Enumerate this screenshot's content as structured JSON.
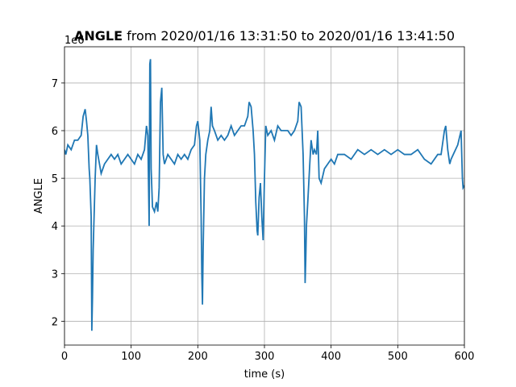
{
  "chart_data": {
    "type": "line",
    "title": [
      "ANGLE",
      "from 2020/01/16 13:31:50 to 2020/01/16 13:41:50"
    ],
    "xlabel": "time (s)",
    "ylabel": "ANGLE",
    "y_offset_label": "1e6",
    "xlim": [
      0,
      600
    ],
    "ylim": [
      1.5,
      7.76
    ],
    "xticks": [
      0,
      100,
      200,
      300,
      400,
      500,
      600
    ],
    "yticks": [
      2,
      3,
      4,
      5,
      6,
      7
    ],
    "grid": true,
    "series": [
      {
        "name": "ANGLE",
        "color": "#1f77b4",
        "x": [
          0,
          2,
          5,
          10,
          15,
          20,
          25,
          28,
          31,
          33,
          35,
          37,
          38,
          40,
          41,
          42,
          43,
          44,
          46,
          48,
          50,
          55,
          60,
          65,
          70,
          75,
          80,
          85,
          90,
          95,
          100,
          105,
          110,
          115,
          120,
          123,
          125,
          127,
          128,
          129,
          130,
          132,
          135,
          138,
          140,
          142,
          144,
          146,
          148,
          150,
          155,
          160,
          165,
          170,
          175,
          180,
          185,
          190,
          195,
          198,
          200,
          203,
          205,
          206,
          207,
          208,
          210,
          212,
          215,
          218,
          220,
          222,
          225,
          230,
          235,
          240,
          245,
          250,
          255,
          260,
          265,
          270,
          275,
          277,
          280,
          283,
          285,
          287,
          289,
          290,
          292,
          294,
          296,
          298,
          300,
          302,
          305,
          310,
          315,
          320,
          325,
          330,
          335,
          340,
          345,
          350,
          352,
          355,
          358,
          360,
          361,
          362,
          363,
          365,
          368,
          370,
          373,
          375,
          378,
          380,
          382,
          385,
          390,
          395,
          400,
          405,
          410,
          420,
          430,
          440,
          450,
          460,
          470,
          480,
          490,
          500,
          510,
          520,
          530,
          540,
          550,
          560,
          565,
          570,
          572,
          575,
          578,
          580,
          590,
          595,
          597,
          598,
          600
        ],
        "values": [
          5.6,
          5.5,
          5.7,
          5.6,
          5.8,
          5.8,
          5.9,
          6.3,
          6.45,
          6.2,
          5.9,
          5.2,
          5.0,
          4.2,
          1.8,
          2.5,
          3.5,
          4.0,
          5.0,
          5.7,
          5.5,
          5.1,
          5.3,
          5.4,
          5.5,
          5.4,
          5.5,
          5.3,
          5.4,
          5.5,
          5.4,
          5.3,
          5.5,
          5.4,
          5.6,
          6.1,
          5.9,
          4.0,
          7.4,
          7.5,
          5.2,
          4.4,
          4.3,
          4.5,
          4.3,
          4.8,
          6.6,
          6.9,
          5.5,
          5.3,
          5.5,
          5.4,
          5.3,
          5.5,
          5.4,
          5.5,
          5.4,
          5.6,
          5.7,
          6.1,
          6.2,
          5.8,
          4.2,
          3.0,
          2.35,
          3.5,
          5.0,
          5.5,
          5.8,
          6.0,
          6.5,
          6.1,
          6.0,
          5.8,
          5.9,
          5.8,
          5.9,
          6.1,
          5.9,
          6.0,
          6.1,
          6.1,
          6.3,
          6.6,
          6.5,
          6.0,
          5.5,
          4.5,
          3.9,
          3.8,
          4.6,
          4.9,
          4.2,
          3.7,
          5.0,
          6.1,
          5.9,
          6.0,
          5.8,
          6.1,
          6.0,
          6.0,
          6.0,
          5.9,
          6.0,
          6.2,
          6.6,
          6.5,
          5.5,
          4.2,
          2.8,
          3.3,
          4.0,
          4.5,
          5.3,
          5.8,
          5.5,
          5.6,
          5.5,
          6.0,
          5.0,
          4.9,
          5.2,
          5.3,
          5.4,
          5.3,
          5.5,
          5.5,
          5.4,
          5.6,
          5.5,
          5.6,
          5.5,
          5.6,
          5.5,
          5.6,
          5.5,
          5.5,
          5.6,
          5.4,
          5.3,
          5.5,
          5.5,
          6.0,
          6.1,
          5.6,
          5.3,
          5.4,
          5.7,
          6.0,
          5.0,
          4.8,
          4.85
        ]
      }
    ]
  }
}
